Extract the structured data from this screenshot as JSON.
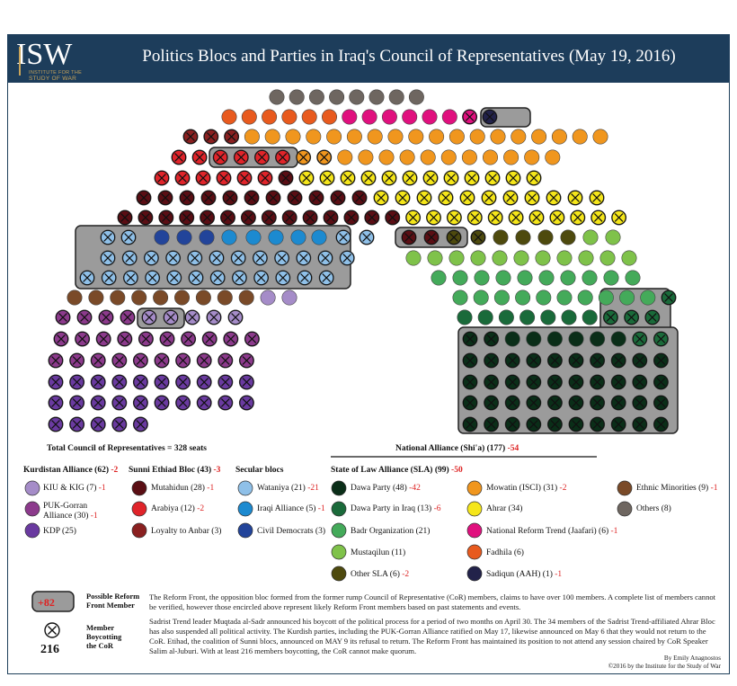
{
  "header": {
    "logo_text": "ISW",
    "logo_sub1": "INSTITUTE FOR THE",
    "logo_sub2": "STUDY OF WAR",
    "title": "Politics Blocs and Parties in Iraq's Council of Representatives  (May 19, 2016)"
  },
  "colors": {
    "header_bg": "#1d3d5b",
    "frame": "#1e3f5a",
    "boycott_box": "#9b9b9b",
    "change_text": "#d22222"
  },
  "chart_data": {
    "type": "parliament",
    "title": "Politics Blocs and Parties in Iraq's Council of Representatives  (May 19, 2016)",
    "total_label": "Total Council of Representatives = 328 seats",
    "total_seats": 328,
    "boycotting_members": 216,
    "boycotting_label": "216",
    "groups": [
      {
        "name": "Kurdistan Alliance",
        "seats": 62,
        "change": "-2",
        "parties": [
          {
            "name": "KIU & KIG",
            "seats": 7,
            "change": "-1",
            "color": "#a58cc8"
          },
          {
            "name": "PUK-Gorran Alliance",
            "seats": 30,
            "change": "-1",
            "color": "#8c3a8c"
          },
          {
            "name": "KDP",
            "seats": 25,
            "change": "",
            "color": "#6a3aa0"
          }
        ]
      },
      {
        "name": "Sunni Ethiad Bloc",
        "seats": 43,
        "change": "-3",
        "parties": [
          {
            "name": "Mutahidun",
            "seats": 28,
            "change": "-1",
            "color": "#5a0e14"
          },
          {
            "name": "Arabiya",
            "seats": 12,
            "change": "-2",
            "color": "#e0242a"
          },
          {
            "name": "Loyalty to Anbar",
            "seats": 3,
            "change": "",
            "color": "#8a2020"
          }
        ]
      },
      {
        "name": "Secular blocs",
        "seats": null,
        "change": "",
        "parties": [
          {
            "name": "Wataniya",
            "seats": 21,
            "change": "-21",
            "color": "#8fc0e8"
          },
          {
            "name": "Iraqi Alliance",
            "seats": 5,
            "change": "-1",
            "color": "#1c8ad0"
          },
          {
            "name": "Civil Democrats",
            "seats": 3,
            "change": "",
            "color": "#22449a"
          }
        ]
      },
      {
        "name": "National Alliance (Shi'a)",
        "seats": 177,
        "change": "-54",
        "parties": [
          {
            "name": "Dawa Party",
            "seats": 48,
            "change": "-42",
            "color": "#0a2e18"
          },
          {
            "name": "Dawa Party in Iraq",
            "seats": 13,
            "change": "-6",
            "color": "#1a6a3a"
          },
          {
            "name": "Badr Organization",
            "seats": 21,
            "change": "",
            "color": "#44aa5a"
          },
          {
            "name": "Mustaqilun",
            "seats": 11,
            "change": "",
            "color": "#7fc24a"
          },
          {
            "name": "Other SLA",
            "seats": 6,
            "change": "-2",
            "color": "#4e4a0e"
          },
          {
            "name": "Mowatin (ISCI)",
            "seats": 31,
            "change": "-2",
            "color": "#f0961e"
          },
          {
            "name": "Ahrar",
            "seats": 34,
            "change": "",
            "color": "#f5e61a"
          },
          {
            "name": "National Reform Trend (Jaafari)",
            "seats": 6,
            "change": "-1",
            "color": "#e0107e"
          },
          {
            "name": "Fadhila",
            "seats": 6,
            "change": "",
            "color": "#e85a1e"
          },
          {
            "name": "Sadiqun (AAH)",
            "seats": 1,
            "change": "-1",
            "color": "#22224a"
          }
        ]
      },
      {
        "name": "Others",
        "seats": null,
        "change": "",
        "parties": [
          {
            "name": "Ethnic Minorities",
            "seats": 9,
            "change": "-1",
            "color": "#7a4a28"
          },
          {
            "name": "Others",
            "seats": 8,
            "change": "",
            "color": "#6e6660"
          }
        ]
      }
    ]
  },
  "legend": {
    "total": "Total Council of Representatives = 328 seats",
    "national_alliance": "National Alliance (Shi'a) (177)",
    "national_alliance_change": "-54",
    "sla": "State of Law Alliance (SLA) (99)",
    "sla_change": "-50",
    "kurdistan": "Kurdistan Alliance (62)",
    "kurdistan_change": "-2",
    "sunni": "Sunni Ethiad Bloc (43)",
    "sunni_change": "-3",
    "secular": "Secular blocs",
    "items": {
      "kiu": "KIU & KIG (7)",
      "kiu_c": "-1",
      "puk1": "PUK-Gorran",
      "puk2": "Alliance (30)",
      "puk_c": "-1",
      "kdp": "KDP (25)",
      "mut": "Mutahidun (28)",
      "mut_c": "-1",
      "arab": "Arabiya (12)",
      "arab_c": "-2",
      "loy": "Loyalty to Anbar (3)",
      "wat": "Wataniya (21)",
      "wat_c": "-21",
      "iraqi": "Iraqi Alliance (5)",
      "iraqi_c": "-1",
      "civil": "Civil Democrats (3)",
      "dawa": "Dawa Party (48)",
      "dawa_c": "-42",
      "dawai": "Dawa Party in Iraq (13)",
      "dawai_c": "-6",
      "badr": "Badr Organization (21)",
      "must": "Mustaqilun (11)",
      "osla": "Other SLA (6)",
      "osla_c": "-2",
      "mow": "Mowatin (ISCI) (31)",
      "mow_c": "-2",
      "ahrar": "Ahrar (34)",
      "nrt": "National Reform Trend (Jaafari) (6)",
      "nrt_c": "-1",
      "fad": "Fadhila (6)",
      "sad": "Sadiqun (AAH) (1)",
      "sad_c": "-1",
      "eth": "Ethnic Minorities (9)",
      "eth_c": "-1",
      "oth": "Others (8)"
    },
    "reform_badge": "+82",
    "reform_label1": "Possible Reform",
    "reform_label2": "Front Member",
    "boycott_label1": "Member",
    "boycott_label2": "Boycotting",
    "boycott_label3": "the CoR",
    "boycott_count": "216"
  },
  "notes": {
    "p1": "The Reform Front, the opposition bloc formed from the former rump Council of Representative (CoR) members, claims to have over 100 members.  A complete list of members cannot be verified, however those encircled above represent likely Reform Front members based on past statements and events.",
    "p2": "Sadrist Trend leader Muqtada al-Sadr announced his boycott of the political process for a period of two months on April 30. The 34 members of the Sadrist Trend-affiliated Ahrar Bloc has also suspended all political activity.  The Kurdish parties, including the PUK-Gorran Alliance ratified on May 17, likewise announced on May 6 that they would not return to the CoR. Etihad, the coalition of Sunni blocs, announced on MAY 9 its refusal to return. The Reform Front has maintained its position to not attend any session chaired by CoR Speaker Salim al-Juburi. With at least 216 members boycotting, the CoR cannot make quorum.",
    "author": "By Emily Anagnostos",
    "copyright": "©2016 by the Institute for the Study of War"
  }
}
